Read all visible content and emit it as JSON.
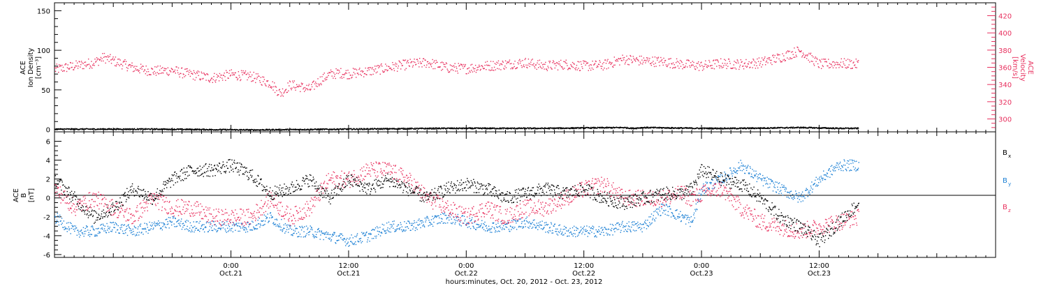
{
  "figure": {
    "x_axis_title": "hours:minutes, Oct. 20, 2012 - Oct. 23, 2012",
    "x_ticks": [
      {
        "hour": 18,
        "time": "0:00",
        "date": "Oct.21"
      },
      {
        "hour": 30,
        "time": "12:00",
        "date": "Oct.21"
      },
      {
        "hour": 42,
        "time": "0:00",
        "date": "Oct.22"
      },
      {
        "hour": 54,
        "time": "12:00",
        "date": "Oct.22"
      },
      {
        "hour": 66,
        "time": "0:00",
        "date": "Oct.23"
      },
      {
        "hour": 78,
        "time": "12:00",
        "date": "Oct.23"
      }
    ],
    "x_range_hours": [
      0,
      96
    ],
    "data_end_hour": 82
  },
  "top_panel": {
    "left_label": [
      "ACE",
      "Ion Density",
      "[cm⁻³]"
    ],
    "right_label": [
      "ACE",
      "Velocity",
      "[km/s]"
    ],
    "left_ticks": [
      "0",
      "50",
      "100",
      "150"
    ],
    "right_ticks": [
      "300",
      "320",
      "340",
      "360",
      "380",
      "400",
      "420"
    ]
  },
  "bottom_panel": {
    "left_label": [
      "ACE",
      "B",
      "[nT]"
    ],
    "left_ticks": [
      "-6",
      "-4",
      "-2",
      "0",
      "2",
      "4",
      "6"
    ],
    "legend": [
      {
        "main": "B",
        "sub": "x",
        "color": "#000000"
      },
      {
        "main": "B",
        "sub": "y",
        "color": "#1a7fd4"
      },
      {
        "main": "B",
        "sub": "z",
        "color": "#e8305e"
      }
    ]
  },
  "chart_data": [
    {
      "type": "scatter",
      "title": "",
      "x_unit": "hours since Oct. 20, 2012 06:00",
      "xlim": [
        0,
        96
      ],
      "left_axis": {
        "label": "ACE Ion Density [cm-3]",
        "ylim": [
          -3,
          160
        ]
      },
      "right_axis": {
        "label": "ACE Velocity [km/s]",
        "ylim": [
          285,
          435
        ]
      },
      "grid": false,
      "series": [
        {
          "axis": "right",
          "color": "#e8305e",
          "x": [
            0,
            2,
            4,
            5,
            6,
            8,
            10,
            12,
            13,
            14,
            16,
            18,
            20,
            22,
            23,
            24,
            25,
            26,
            27,
            28,
            29,
            30,
            32,
            34,
            36,
            38,
            40,
            42,
            44,
            46,
            48,
            50,
            52,
            54,
            56,
            58,
            59,
            60,
            62,
            64,
            66,
            68,
            70,
            72,
            74,
            76,
            78,
            80,
            82
          ],
          "values": [
            358,
            362,
            366,
            372,
            368,
            360,
            356,
            357,
            354,
            352,
            348,
            352,
            350,
            342,
            330,
            340,
            338,
            335,
            345,
            352,
            354,
            353,
            356,
            360,
            364,
            366,
            360,
            359,
            362,
            364,
            366,
            362,
            364,
            362,
            363,
            370,
            369,
            368,
            367,
            364,
            362,
            365,
            364,
            366,
            372,
            380,
            364,
            365,
            364
          ]
        },
        {
          "axis": "left",
          "color": "#000000",
          "x": [
            0,
            10,
            20,
            30,
            40,
            46,
            50,
            58,
            59,
            60,
            66,
            70,
            76,
            80,
            82
          ],
          "values": [
            1,
            1,
            0,
            1,
            2,
            2,
            2,
            3,
            2,
            3,
            2,
            2,
            3,
            2,
            2
          ]
        }
      ]
    },
    {
      "type": "scatter",
      "title": "",
      "x_unit": "hours since Oct. 20, 2012 06:00",
      "xlim": [
        0,
        96
      ],
      "ylabel": "ACE B [nT]",
      "ylim": [
        -6.3,
        7
      ],
      "grid": false,
      "series": [
        {
          "name": "Bx",
          "color": "#000000",
          "x": [
            0,
            2,
            4,
            6,
            8,
            10,
            12,
            14,
            16,
            18,
            20,
            22,
            24,
            26,
            28,
            30,
            32,
            34,
            36,
            38,
            40,
            42,
            44,
            46,
            48,
            50,
            52,
            54,
            56,
            58,
            60,
            62,
            64,
            65,
            66,
            68,
            70,
            72,
            74,
            76,
            78,
            80,
            82
          ],
          "values": [
            2,
            0,
            -2,
            -1,
            1,
            0,
            2,
            3,
            3,
            3.5,
            2.5,
            0.5,
            1,
            2,
            0,
            2,
            1,
            2,
            1,
            0,
            1,
            1.5,
            1,
            0,
            0.5,
            1,
            0.5,
            1,
            0,
            -0.5,
            0,
            0.5,
            0.5,
            1,
            3,
            2,
            1.5,
            0,
            -2,
            -3,
            -4.5,
            -2.5,
            -0.5
          ]
        },
        {
          "name": "By",
          "color": "#1a7fd4",
          "x": [
            0,
            2,
            4,
            6,
            8,
            10,
            12,
            14,
            16,
            18,
            20,
            22,
            24,
            26,
            28,
            30,
            32,
            34,
            36,
            38,
            40,
            42,
            44,
            46,
            48,
            50,
            52,
            54,
            56,
            58,
            60,
            62,
            64,
            65,
            66,
            68,
            70,
            72,
            74,
            76,
            78,
            80,
            82
          ],
          "values": [
            -2,
            -3.5,
            -3.5,
            -3,
            -3.5,
            -3,
            -2.5,
            -3,
            -3,
            -3,
            -3,
            -2,
            -3.5,
            -3.5,
            -4,
            -4.5,
            -4,
            -3,
            -3,
            -2.5,
            -2,
            -2.5,
            -3,
            -3,
            -2.5,
            -3,
            -3.5,
            -3.5,
            -3.5,
            -3,
            -3,
            -1,
            -2,
            -2.5,
            1,
            2,
            3.5,
            2,
            1,
            0,
            2,
            3.5,
            3.5
          ]
        },
        {
          "name": "Bz",
          "color": "#e8305e",
          "x": [
            0,
            2,
            4,
            6,
            8,
            10,
            12,
            14,
            16,
            18,
            20,
            22,
            24,
            26,
            28,
            30,
            32,
            34,
            36,
            38,
            40,
            42,
            44,
            46,
            48,
            50,
            52,
            54,
            56,
            58,
            60,
            62,
            64,
            65,
            66,
            68,
            70,
            72,
            74,
            76,
            78,
            80,
            82
          ],
          "values": [
            1,
            -1,
            0,
            -1,
            -2,
            0,
            -1,
            -1,
            -2,
            -2,
            -2,
            0,
            -2,
            -1,
            2,
            2,
            3,
            3,
            2,
            0,
            -1,
            -2,
            -1,
            -2,
            -1,
            -1,
            0,
            1,
            1.5,
            0,
            0,
            0,
            0.5,
            0,
            0.5,
            1,
            -1,
            -2.5,
            -3,
            -3.5,
            -3,
            -2.5,
            -2
          ]
        }
      ]
    }
  ]
}
